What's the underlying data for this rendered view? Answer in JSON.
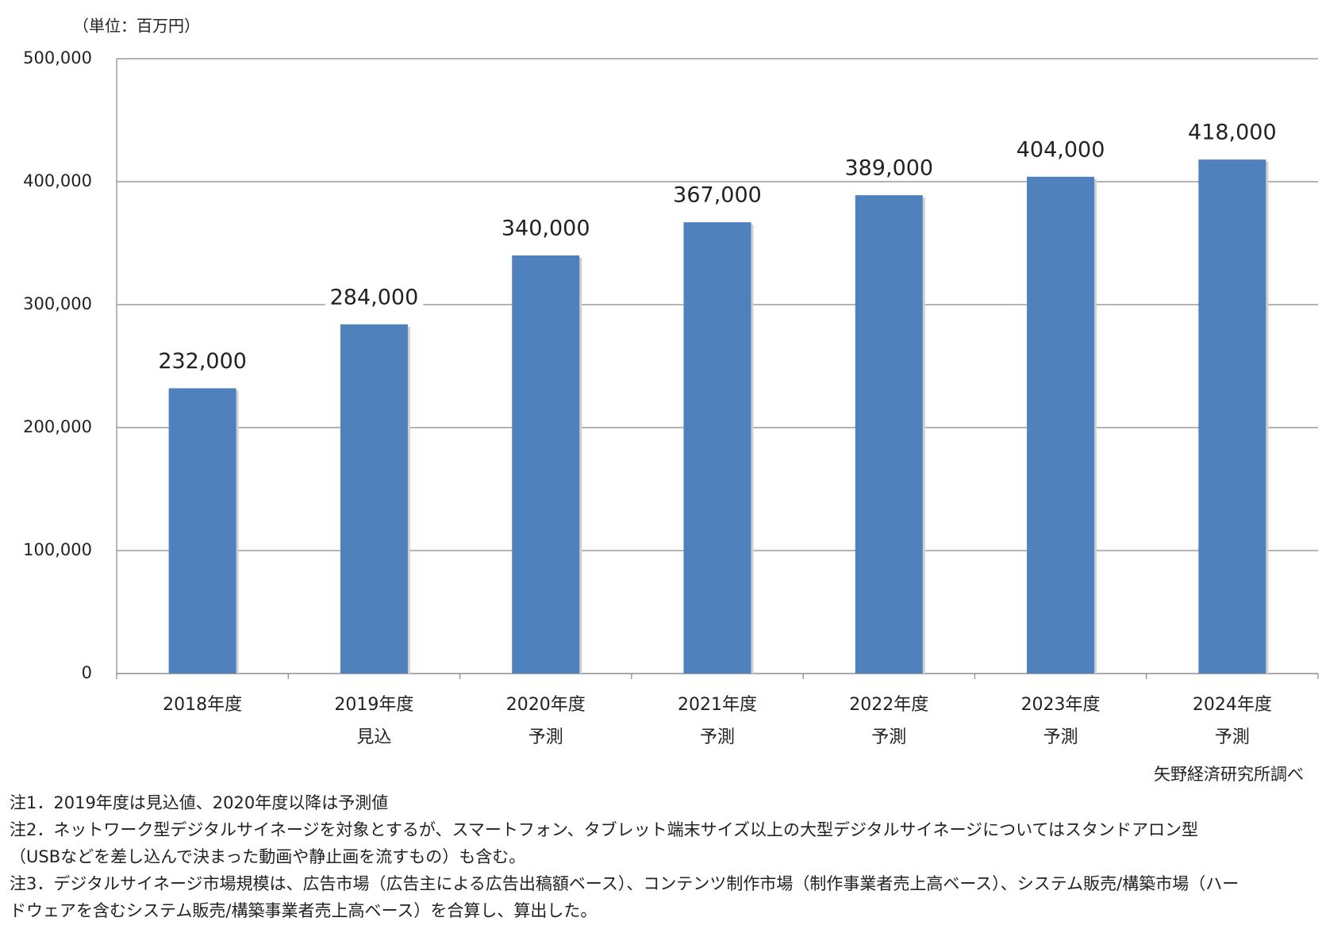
{
  "chart_data": {
    "type": "bar",
    "unit_label": "（単位：百万円）",
    "categories": [
      "2018年度",
      "2019年度",
      "2020年度",
      "2021年度",
      "2022年度",
      "2023年度",
      "2024年度"
    ],
    "sublabels": [
      null,
      "見込",
      "予測",
      "予測",
      "予測",
      "予測",
      "予測"
    ],
    "values": [
      232000,
      284000,
      340000,
      367000,
      389000,
      404000,
      418000
    ],
    "value_labels": [
      "232,000",
      "284,000",
      "340,000",
      "367,000",
      "389,000",
      "404,000",
      "418,000"
    ],
    "color": "#4f81bd",
    "ylim": [
      0,
      500000
    ],
    "yticks": [
      0,
      {
        "value": 100000,
        "label": "100,000"
      },
      {
        "value": 200000,
        "label": "200,000"
      },
      {
        "value": 300000,
        "label": "300,000"
      },
      {
        "value": 400000,
        "label": "400,000"
      },
      {
        "value": 500000,
        "label": "500,000"
      }
    ],
    "grid": true,
    "source": "矢野経済研究所調べ",
    "notes": [
      "注1．2019年度は見込値、2020年度以降は予測値",
      "注2．ネットワーク型デジタルサイネージを対象とするが、スマートフォン、タブレット端末サイズ以上の大型デジタルサイネージについてはスタンドアロン型（USBなどを差し込んで決まった動画や静止画を流すもの）も含む。",
      "注3．デジタルサイネージ市場規模は、広告市場（広告主による広告出稿額ベース）、コンテンツ制作市場（制作事業者売上高ベース）、システム販売/構築市場（ハードウェアを含むシステム販売/構築事業者売上高ベース）を合算し、算出した。"
    ]
  }
}
